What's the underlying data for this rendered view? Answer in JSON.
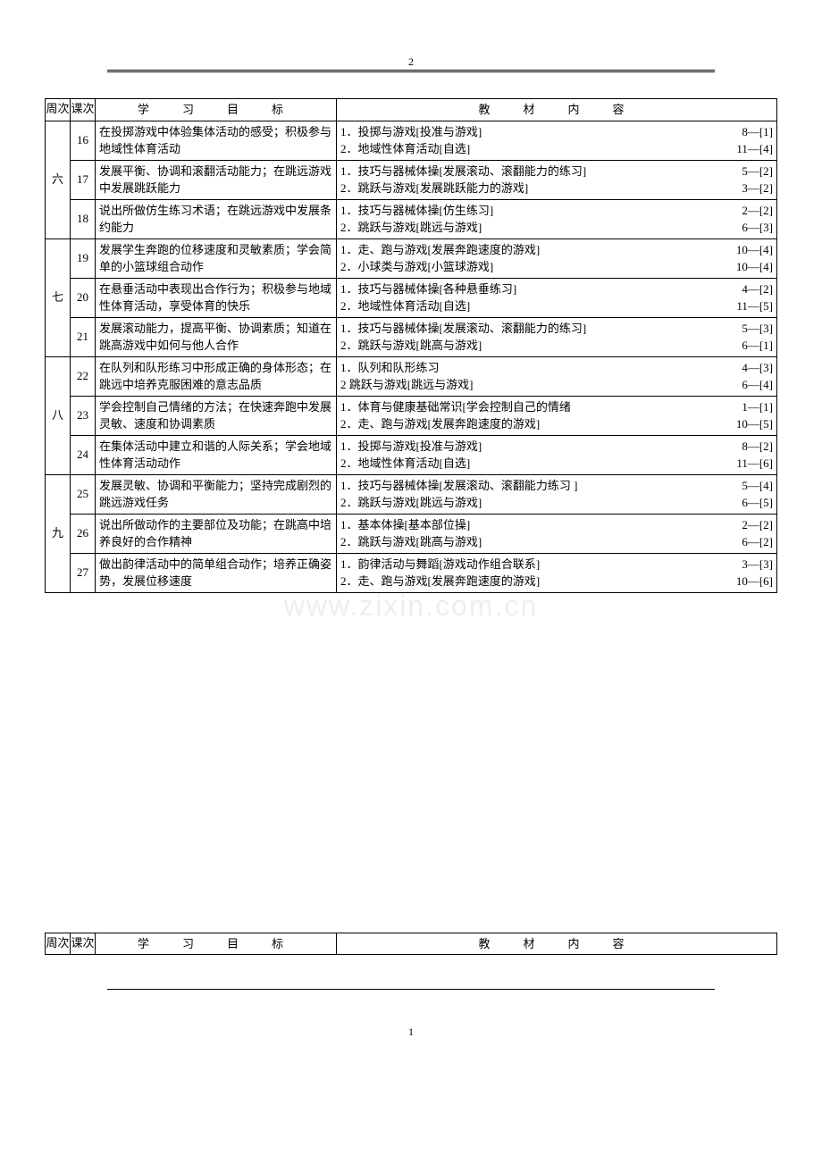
{
  "page_number_top": "2",
  "page_number_bottom": "1",
  "watermark": "www.zixin.com.cn",
  "headers": {
    "week": "周次",
    "lesson": "课次",
    "target": "学　习　目　标",
    "material": "教　材　内　容"
  },
  "table1_rows": [
    {
      "week": "六",
      "week_rowspan": 3,
      "lesson": "16",
      "target": "在投掷游戏中体验集体活动的感受；积极参与地域性体育活动",
      "materials": [
        {
          "l": "1．投掷与游戏[投准与游戏]",
          "r": "8—[1]"
        },
        {
          "l": "2．地域性体育活动[自选]",
          "r": "11—[4]"
        }
      ]
    },
    {
      "lesson": "17",
      "target": "发展平衡、协调和滚翻活动能力；在跳远游戏中发展跳跃能力",
      "materials": [
        {
          "l": "1．技巧与器械体操[发展滚动、滚翻能力的练习]",
          "r": "5—[2]"
        },
        {
          "l": "2．跳跃与游戏[发展跳跃能力的游戏]",
          "r": "3—[2]"
        }
      ]
    },
    {
      "lesson": "18",
      "target": "说出所做仿生练习术语；在跳远游戏中发展条约能力",
      "materials": [
        {
          "l": "1．技巧与器械体操[仿生练习]",
          "r": "2—[2]"
        },
        {
          "l": "2．跳跃与游戏[跳远与游戏]",
          "r": "6—[3]"
        }
      ]
    },
    {
      "week": "七",
      "week_rowspan": 3,
      "lesson": "19",
      "target": "发展学生奔跑的位移速度和灵敏素质；学会简单的小篮球组合动作",
      "materials": [
        {
          "l": "1．走、跑与游戏[发展奔跑速度的游戏]",
          "r": "10—[4]"
        },
        {
          "l": "2．小球类与游戏[小篮球游戏]",
          "r": "10—[4]"
        }
      ]
    },
    {
      "lesson": "20",
      "target": "在悬垂活动中表现出合作行为；积极参与地域性体育活动，享受体育的快乐",
      "materials": [
        {
          "l": "1．技巧与器械体操[各种悬垂练习]",
          "r": "4—[2]"
        },
        {
          "l": "2．地域性体育活动[自选]",
          "r": "11—[5]"
        }
      ]
    },
    {
      "lesson": "21",
      "target": "发展滚动能力，提高平衡、协调素质；知道在跳高游戏中如何与他人合作",
      "materials": [
        {
          "l": "1．技巧与器械体操[发展滚动、滚翻能力的练习]",
          "r": "5—[3]"
        },
        {
          "l": "2．跳跃与游戏[跳高与游戏]",
          "r": "6—[1]"
        }
      ]
    },
    {
      "week": "八",
      "week_rowspan": 3,
      "lesson": "22",
      "target": "在队列和队形练习中形成正确的身体形态；在跳远中培养克服困难的意志品质",
      "materials": [
        {
          "l": "1．队列和队形练习",
          "r": "4—[3]"
        },
        {
          "l": "2 跳跃与游戏[跳远与游戏]",
          "r": "6—[4]"
        }
      ]
    },
    {
      "lesson": "23",
      "target": "学会控制自己情绪的方法；在快速奔跑中发展灵敏、速度和协调素质",
      "materials": [
        {
          "l": "1．体育与健康基础常识[学会控制自己的情绪",
          "r": "1—[1]"
        },
        {
          "l": "2．走、跑与游戏[发展奔跑速度的游戏]",
          "r": "10—[5]"
        }
      ]
    },
    {
      "lesson": "24",
      "target": "在集体活动中建立和谐的人际关系；学会地域性体育活动动作",
      "materials": [
        {
          "l": "1．投掷与游戏[投准与游戏]",
          "r": "8—[2]"
        },
        {
          "l": "2．地域性体育活动[自选]",
          "r": "11—[6]"
        }
      ]
    },
    {
      "week": "九",
      "week_rowspan": 3,
      "lesson": "25",
      "target": "发展灵敏、协调和平衡能力；坚持完成剧烈的跳远游戏任务",
      "materials": [
        {
          "l": "1．技巧与器械体操[发展滚动、滚翻能力练习 ]",
          "r": "5—[4]"
        },
        {
          "l": "2．跳跃与游戏[跳远与游戏]",
          "r": "6—[5]"
        }
      ]
    },
    {
      "lesson": "26",
      "target": "说出所做动作的主要部位及功能；在跳高中培养良好的合作精神",
      "materials": [
        {
          "l": "1．基本体操[基本部位操]",
          "r": "2—[2]"
        },
        {
          "l": "2．跳跃与游戏[跳高与游戏]",
          "r": "6—[2]"
        }
      ]
    },
    {
      "lesson": "27",
      "target": "做出韵律活动中的简单组合动作；培养正确姿势，发展位移速度",
      "materials": [
        {
          "l": "1．韵律活动与舞蹈[游戏动作组合联系]",
          "r": "3—[3]"
        },
        {
          "l": "2．走、跑与游戏[发展奔跑速度的游戏]",
          "r": "10—[6]"
        }
      ]
    }
  ]
}
